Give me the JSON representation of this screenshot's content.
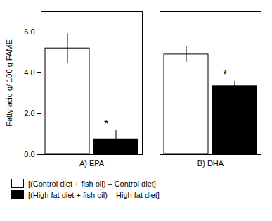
{
  "chart_data": {
    "type": "bar",
    "categories": [
      "A) EPA",
      "B) DHA"
    ],
    "series": [
      {
        "name": "[(Control diet + fish oil) – Control diet]",
        "color": "#ffffff",
        "values": [
          5.2,
          4.9
        ],
        "errors": [
          0.72,
          0.38
        ]
      },
      {
        "name": "[(High fat diet + fish oil) – High fat diet]",
        "color": "#000000",
        "values": [
          0.75,
          3.35
        ],
        "errors": [
          0.45,
          0.25
        ]
      }
    ],
    "ylabel": "Fatty acid g/ 100 g FAME",
    "ylim": [
      0,
      7
    ],
    "yticks": [
      0,
      2,
      4,
      6
    ],
    "grid": false,
    "legend": "bottom",
    "annotations": [
      {
        "text": "*",
        "category": "A) EPA",
        "series": "[(High fat diet + fish oil) – High fat diet]"
      },
      {
        "text": "*",
        "category": "B) DHA",
        "series": "[(High fat diet + fish oil) – High fat diet]"
      }
    ]
  }
}
